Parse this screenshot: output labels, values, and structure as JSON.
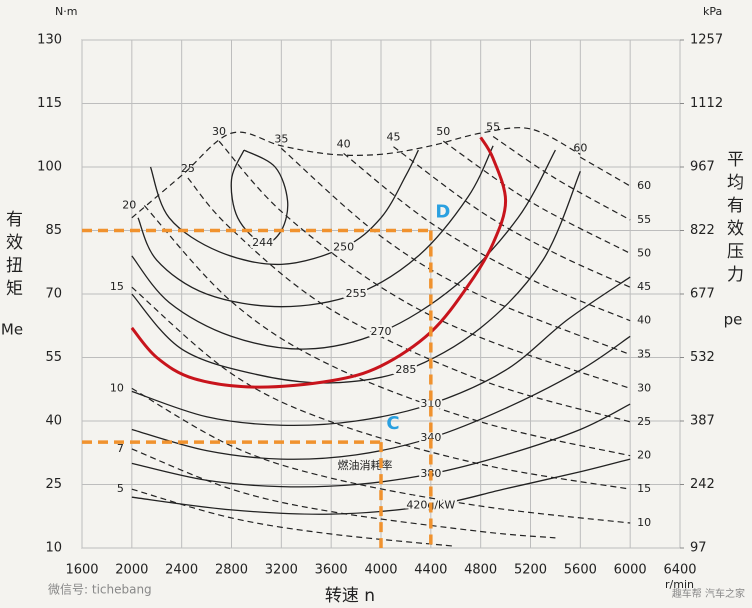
{
  "chart_data": {
    "type": "contour",
    "x_unit": "r/min",
    "y_unit": "N·m",
    "y2_unit": "kPa",
    "xlabel": "转速 n",
    "ylabel": "有效扭矩",
    "ylabel_symbol": "Me",
    "y2label": "平均有效压力",
    "y2label_symbol": "pe",
    "xlim": [
      1600,
      6400
    ],
    "xticks": [
      1600,
      2000,
      2400,
      2800,
      3200,
      3600,
      4000,
      4400,
      4800,
      5200,
      5600,
      6000,
      6400
    ],
    "ylim": [
      10,
      130
    ],
    "yticks": [
      10,
      25,
      40,
      55,
      70,
      85,
      100,
      115,
      130
    ],
    "y2lim": [
      97,
      1257
    ],
    "y2ticks": [
      97,
      242,
      387,
      532,
      677,
      822,
      967,
      1112,
      1257
    ],
    "grid": true,
    "annotation": "燃油消耗率",
    "bsfc_curves": [
      {
        "label": 244,
        "x": [
          2900,
          3150,
          3250,
          3200,
          3050,
          2850,
          2800,
          2900
        ],
        "y": [
          104,
          100,
          92,
          85,
          82,
          88,
          97,
          104
        ]
      },
      {
        "label": 250,
        "x": [
          2150,
          2300,
          2700,
          3200,
          3700,
          4000,
          4200,
          4300
        ],
        "y": [
          100,
          88,
          80,
          77,
          81,
          88,
          98,
          104
        ]
      },
      {
        "label": 255,
        "x": [
          2050,
          2200,
          2600,
          3200,
          3800,
          4300,
          4700,
          4900
        ],
        "y": [
          88,
          78,
          70,
          67,
          70,
          79,
          93,
          105
        ]
      },
      {
        "label": 270,
        "x": [
          2000,
          2300,
          2800,
          3400,
          4000,
          4600,
          5100,
          5400
        ],
        "y": [
          79,
          68,
          60,
          57,
          61,
          72,
          88,
          104
        ]
      },
      {
        "label": 285,
        "x": [
          2000,
          2400,
          3000,
          3600,
          4200,
          4800,
          5300,
          5600
        ],
        "y": [
          70,
          57,
          51,
          49,
          52,
          62,
          78,
          99
        ]
      },
      {
        "label": 310,
        "x": [
          2000,
          2600,
          3200,
          3800,
          4400,
          5000,
          5500,
          6000
        ],
        "y": [
          47,
          41,
          39,
          40,
          44,
          52,
          64,
          74
        ]
      },
      {
        "label": 340,
        "x": [
          2000,
          2600,
          3200,
          3800,
          4400,
          5000,
          5600,
          6000
        ],
        "y": [
          38,
          33,
          31,
          32,
          36,
          43,
          52,
          60
        ]
      },
      {
        "label": 380,
        "x": [
          2000,
          2600,
          3200,
          3800,
          4400,
          5000,
          5600,
          6000
        ],
        "y": [
          30,
          26,
          24.5,
          25,
          27.5,
          32,
          38,
          44
        ]
      },
      {
        "label": "420g/kW",
        "x": [
          2000,
          2800,
          3600,
          4400,
          5000,
          5600,
          6000
        ],
        "y": [
          22,
          19,
          18,
          20,
          24,
          28,
          31
        ]
      }
    ],
    "power_lines": [
      {
        "label": 5,
        "x": [
          2000,
          2800,
          3600,
          4600
        ],
        "y": [
          23.9,
          17.1,
          13.3,
          10.4
        ]
      },
      {
        "label": 7,
        "x": [
          2000,
          2800,
          3600,
          4800,
          5400
        ],
        "y": [
          33.4,
          23.9,
          18.6,
          13.9,
          12.4
        ]
      },
      {
        "label": 10,
        "x": [
          2000,
          2800,
          3600,
          4800,
          6000
        ],
        "y": [
          47.7,
          34.1,
          26.5,
          19.9,
          15.9
        ]
      },
      {
        "label": 15,
        "x": [
          2000,
          2800,
          3600,
          4800,
          6000
        ],
        "y": [
          71.6,
          51.2,
          39.8,
          29.8,
          23.9
        ]
      },
      {
        "label": 20,
        "x": [
          2100,
          2800,
          3600,
          4800,
          6000
        ],
        "y": [
          90.9,
          68.2,
          53.1,
          39.8,
          31.8
        ]
      },
      {
        "label": 25,
        "x": [
          2450,
          2800,
          3600,
          4800,
          6000
        ],
        "y": [
          97.4,
          85.3,
          66.3,
          49.7,
          39.8
        ]
      },
      {
        "label": 30,
        "x": [
          2700,
          3200,
          4000,
          4800,
          6000
        ],
        "y": [
          106.1,
          89.5,
          71.6,
          59.7,
          47.7
        ]
      },
      {
        "label": 35,
        "x": [
          3200,
          4000,
          4800,
          6000
        ],
        "y": [
          104.4,
          83.6,
          69.6,
          55.7
        ]
      },
      {
        "label": 40,
        "x": [
          3700,
          4400,
          5200,
          6000
        ],
        "y": [
          103.2,
          86.8,
          73.5,
          63.7
        ]
      },
      {
        "label": 45,
        "x": [
          4100,
          4800,
          5400,
          6000
        ],
        "y": [
          104.8,
          89.5,
          79.6,
          71.6
        ]
      },
      {
        "label": 50,
        "x": [
          4500,
          5200,
          6000
        ],
        "y": [
          106.1,
          91.8,
          79.6
        ]
      },
      {
        "label": 55,
        "x": [
          4900,
          5400,
          6000
        ],
        "y": [
          107.2,
          97.3,
          87.5
        ]
      },
      {
        "label": 60,
        "x": [
          5600,
          6000
        ],
        "y": [
          102.3,
          95.5
        ]
      }
    ],
    "envelope": {
      "x": [
        2000,
        2400,
        2800,
        3200,
        3600,
        4000,
        4400,
        4800,
        5200,
        5600
      ],
      "y": [
        88,
        98,
        108,
        105,
        103,
        103,
        105,
        108,
        109,
        103
      ]
    },
    "optimal_curve": {
      "color": "#c8141c",
      "x": [
        2000,
        2200,
        2500,
        3000,
        3600,
        4000,
        4400,
        4700,
        4900,
        5000,
        4900,
        4800
      ],
      "y": [
        62,
        55,
        50,
        48,
        49.5,
        53,
        61,
        72,
        82,
        92,
        102,
        107
      ]
    },
    "operating_points_color": "#f0922e",
    "label_color": "#2aa0e0",
    "operating_points": [
      {
        "label": "D",
        "x": 4400,
        "y": 85
      },
      {
        "label": "C",
        "x": 4000,
        "y": 35
      }
    ]
  },
  "watermark": {
    "left": "微信号: tichebang",
    "right": "趣车帮 汽车之家"
  }
}
